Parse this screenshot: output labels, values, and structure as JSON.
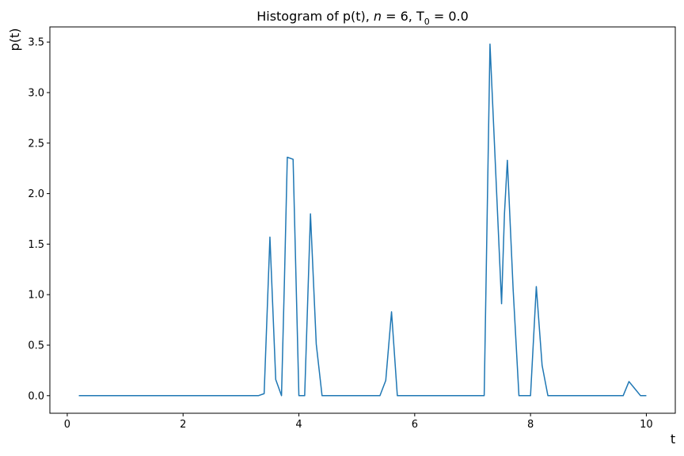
{
  "chart_data": {
    "type": "line",
    "title_prefix": "Histogram of p(t), ",
    "title_var": "n",
    "title_mid": " = 6, T",
    "title_sub": "0",
    "title_suffix": " = 0.0",
    "xlabel": "t",
    "ylabel": "p(t)",
    "xlim": [
      -0.3,
      10.5
    ],
    "ylim": [
      -0.174,
      3.65
    ],
    "xticks": [
      0,
      2,
      4,
      6,
      8,
      10
    ],
    "xtick_labels": [
      "0",
      "2",
      "4",
      "6",
      "8",
      "10"
    ],
    "yticks": [
      0.0,
      0.5,
      1.0,
      1.5,
      2.0,
      2.5,
      3.0,
      3.5
    ],
    "ytick_labels": [
      "0.0",
      "0.5",
      "1.0",
      "1.5",
      "2.0",
      "2.5",
      "3.0",
      "3.5"
    ],
    "grid": false,
    "colors": {
      "line": "#1f77b4"
    },
    "series": [
      {
        "x": [
          0.2,
          3.3,
          3.4,
          3.5,
          3.6,
          3.7,
          3.75,
          3.8,
          3.9,
          4.0,
          4.1,
          4.2,
          4.3,
          4.4,
          5.4,
          5.5,
          5.6,
          5.7,
          7.2,
          7.3,
          7.4,
          7.5,
          7.55,
          7.6,
          7.7,
          7.8,
          8.0,
          8.1,
          8.2,
          8.3,
          9.6,
          9.7,
          9.8,
          9.9,
          10.0
        ],
        "y": [
          0.0,
          0.0,
          0.02,
          1.57,
          0.16,
          0.0,
          1.13,
          2.36,
          2.34,
          0.0,
          0.0,
          1.8,
          0.51,
          0.0,
          0.0,
          0.15,
          0.83,
          0.0,
          0.0,
          3.48,
          2.2,
          0.91,
          1.8,
          2.33,
          1.05,
          0.0,
          0.0,
          1.08,
          0.3,
          0.0,
          0.0,
          0.14,
          0.07,
          0.0,
          0.0
        ]
      }
    ]
  }
}
